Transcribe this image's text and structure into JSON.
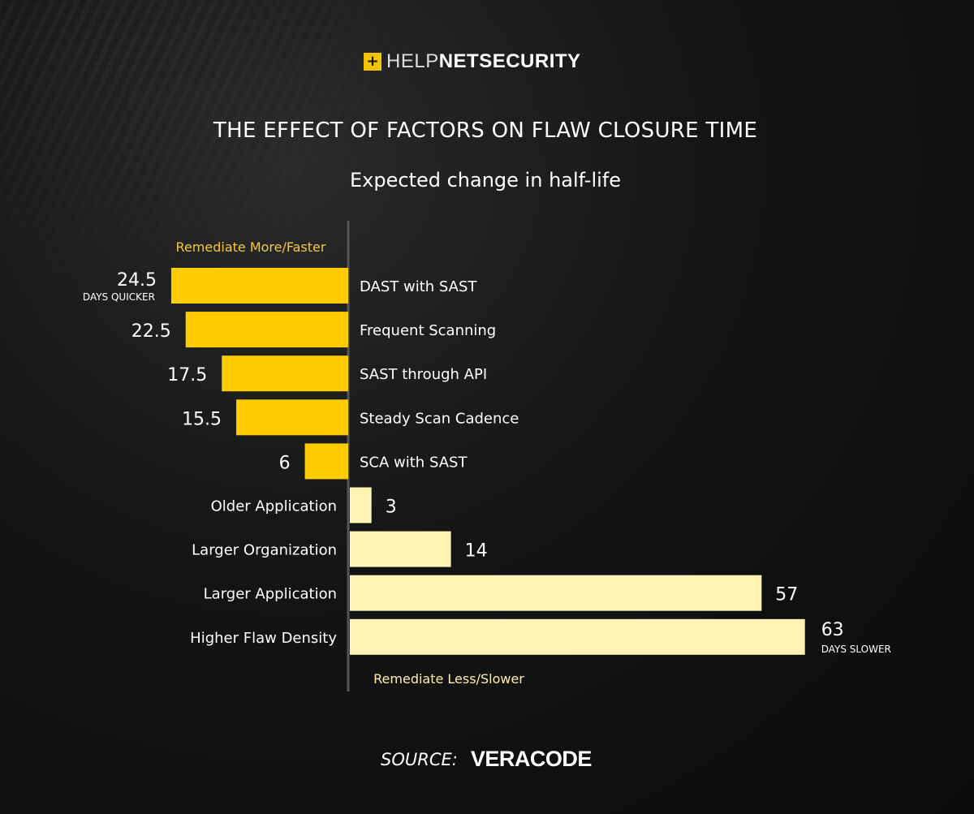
{
  "brand": {
    "logo_plus": "+",
    "logo_thin": "HELP",
    "logo_bold": "NETSECURITY"
  },
  "colors": {
    "faster": "#FFCC00",
    "slower": "#FFF4B3",
    "axis": "#555555",
    "faster_label": "#F5C842",
    "slower_label": "#FFF0A8"
  },
  "chart_data": {
    "type": "bar",
    "orientation": "horizontal-diverging",
    "title": "THE EFFECT OF FACTORS ON FLAW CLOSURE TIME",
    "subtitle": "Expected change in half-life",
    "top_label": "Remediate More/Faster",
    "bottom_label": "Remediate Less/Slower",
    "unit_faster": "DAYS QUICKER",
    "unit_slower": "DAYS SLOWER",
    "categories": [
      "DAST with SAST",
      "Frequent Scanning",
      "SAST through API",
      "Steady Scan Cadence",
      "SCA with SAST",
      "Older Application",
      "Larger Organization",
      "Larger Application",
      "Higher Flaw Density"
    ],
    "values": [
      -24.5,
      -22.5,
      -17.5,
      -15.5,
      -6,
      3,
      14,
      57,
      63
    ],
    "labels": [
      "24.5",
      "22.5",
      "17.5",
      "15.5",
      "6",
      "3",
      "14",
      "57",
      "63"
    ]
  },
  "source": {
    "label": "SOURCE:",
    "brand": "VERACODE"
  }
}
